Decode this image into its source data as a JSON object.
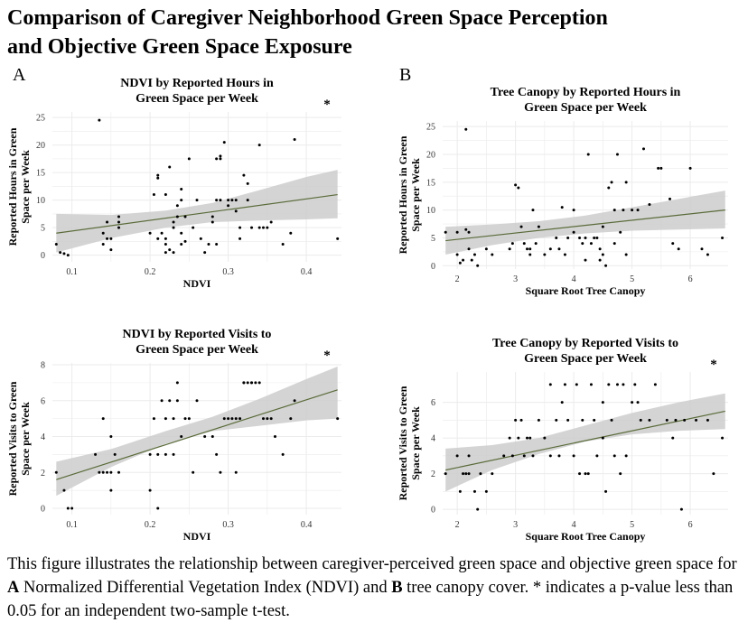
{
  "figure": {
    "title_line1": "Comparison of Caregiver Neighborhood Green Space Perception",
    "title_line2": "and Objective Green Space Exposure",
    "panel_a": "A",
    "panel_b": "B",
    "caption": {
      "part1": "This figure illustrates the relationship between caregiver-perceived green space and objective green space for ",
      "bold_a": "A",
      "part2": " Normalized Differential Vegetation Index (NDVI) and ",
      "bold_b": "B",
      "part3": " tree canopy cover. * indicates a p-value less than 0.05 for an independent two-sample t-test."
    },
    "colors": {
      "grid": "#ebebeb",
      "band": "#cccccc",
      "fit": "#5a6b3a",
      "point": "#000000"
    }
  },
  "chart_data": [
    {
      "type": "scatter",
      "title_line1": "NDVI by Reported Hours in",
      "title_line2": "Green Space per Week",
      "xlabel": "NDVI",
      "ylabel_line1": "Reported Hours in Green",
      "ylabel_line2": "Space per Week",
      "significance": "*",
      "xlim": [
        0.075,
        0.445
      ],
      "ylim": [
        -1.2,
        26
      ],
      "xticks": [
        0.1,
        0.2,
        0.3,
        0.4
      ],
      "xtick_labels": [
        "0.1",
        "0.2",
        "0.3",
        "0.4"
      ],
      "yticks": [
        0,
        5,
        10,
        15,
        20,
        25
      ],
      "ytick_labels": [
        "0",
        "5",
        "10",
        "15",
        "20",
        "25"
      ],
      "fit": {
        "x0": 0.08,
        "y0": 4,
        "x1": 0.44,
        "y1": 11
      },
      "band": {
        "x": [
          0.08,
          0.15,
          0.22,
          0.28,
          0.34,
          0.4,
          0.44
        ],
        "lower": [
          0.5,
          3.1,
          5.0,
          6.0,
          6.3,
          6.5,
          6.7
        ],
        "upper": [
          7.5,
          7.3,
          8.1,
          9.5,
          11.8,
          14.2,
          15.5
        ]
      },
      "points": [
        [
          0.08,
          2
        ],
        [
          0.085,
          0.5
        ],
        [
          0.09,
          0.3
        ],
        [
          0.095,
          0
        ],
        [
          0.135,
          24.5
        ],
        [
          0.14,
          2
        ],
        [
          0.14,
          4
        ],
        [
          0.145,
          6
        ],
        [
          0.145,
          3
        ],
        [
          0.15,
          1
        ],
        [
          0.15,
          3
        ],
        [
          0.16,
          5
        ],
        [
          0.16,
          6
        ],
        [
          0.16,
          7
        ],
        [
          0.2,
          4
        ],
        [
          0.205,
          11
        ],
        [
          0.21,
          3
        ],
        [
          0.21,
          14.5
        ],
        [
          0.21,
          14
        ],
        [
          0.215,
          4
        ],
        [
          0.22,
          11
        ],
        [
          0.22,
          3
        ],
        [
          0.22,
          2
        ],
        [
          0.22,
          0.5
        ],
        [
          0.225,
          1
        ],
        [
          0.225,
          16
        ],
        [
          0.23,
          5
        ],
        [
          0.23,
          6
        ],
        [
          0.23,
          0.5
        ],
        [
          0.235,
          7
        ],
        [
          0.235,
          9
        ],
        [
          0.24,
          4
        ],
        [
          0.24,
          10
        ],
        [
          0.24,
          12
        ],
        [
          0.24,
          2
        ],
        [
          0.245,
          2.5
        ],
        [
          0.245,
          7
        ],
        [
          0.25,
          17.5
        ],
        [
          0.255,
          5
        ],
        [
          0.26,
          10
        ],
        [
          0.265,
          3
        ],
        [
          0.27,
          0.5
        ],
        [
          0.275,
          2
        ],
        [
          0.28,
          6
        ],
        [
          0.28,
          7
        ],
        [
          0.285,
          10
        ],
        [
          0.285,
          2
        ],
        [
          0.285,
          17.5
        ],
        [
          0.29,
          10
        ],
        [
          0.29,
          18
        ],
        [
          0.29,
          17.5
        ],
        [
          0.295,
          20.5
        ],
        [
          0.3,
          10
        ],
        [
          0.3,
          9
        ],
        [
          0.305,
          10
        ],
        [
          0.31,
          10
        ],
        [
          0.31,
          8
        ],
        [
          0.315,
          3
        ],
        [
          0.315,
          5
        ],
        [
          0.32,
          14.5
        ],
        [
          0.325,
          10
        ],
        [
          0.325,
          13
        ],
        [
          0.33,
          5
        ],
        [
          0.34,
          20
        ],
        [
          0.34,
          5
        ],
        [
          0.345,
          5
        ],
        [
          0.35,
          5
        ],
        [
          0.355,
          6
        ],
        [
          0.37,
          2
        ],
        [
          0.38,
          4
        ],
        [
          0.385,
          21
        ],
        [
          0.44,
          3
        ]
      ]
    },
    {
      "type": "scatter",
      "title_line1": "Tree Canopy by Reported Hours in",
      "title_line2": "Green Space per Week",
      "xlabel": "Square Root Tree Canopy",
      "ylabel_line1": "Reported Hours in Green",
      "ylabel_line2": "Space per Week",
      "significance": "",
      "xlim": [
        1.75,
        6.65
      ],
      "ylim": [
        -0.6,
        26
      ],
      "xticks": [
        2,
        3,
        4,
        5,
        6
      ],
      "xtick_labels": [
        "2",
        "3",
        "4",
        "5",
        "6"
      ],
      "yticks": [
        0,
        5,
        10,
        15,
        20,
        25
      ],
      "ytick_labels": [
        "0",
        "5",
        "10",
        "15",
        "20",
        "25"
      ],
      "fit": {
        "x0": 1.8,
        "y0": 4.5,
        "x1": 6.6,
        "y1": 10
      },
      "band": {
        "x": [
          1.8,
          2.6,
          3.4,
          4.2,
          5.0,
          5.8,
          6.6
        ],
        "lower": [
          2.0,
          3.7,
          5.0,
          5.8,
          6.3,
          6.5,
          6.7
        ],
        "upper": [
          7.0,
          7.4,
          8.0,
          9.0,
          10.5,
          12.0,
          13.5
        ]
      },
      "points": [
        [
          1.8,
          6
        ],
        [
          2.0,
          2
        ],
        [
          2.0,
          6
        ],
        [
          2.05,
          0.5
        ],
        [
          2.1,
          1
        ],
        [
          2.15,
          6.5
        ],
        [
          2.15,
          24.5
        ],
        [
          2.2,
          6
        ],
        [
          2.2,
          3
        ],
        [
          2.25,
          1
        ],
        [
          2.3,
          2
        ],
        [
          2.35,
          0
        ],
        [
          2.5,
          3
        ],
        [
          2.6,
          2
        ],
        [
          2.9,
          3
        ],
        [
          2.95,
          4
        ],
        [
          3.0,
          14.5
        ],
        [
          3.05,
          14
        ],
        [
          3.1,
          7
        ],
        [
          3.15,
          4
        ],
        [
          3.2,
          3
        ],
        [
          3.25,
          3
        ],
        [
          3.25,
          2
        ],
        [
          3.3,
          10
        ],
        [
          3.35,
          4
        ],
        [
          3.4,
          7
        ],
        [
          3.5,
          2
        ],
        [
          3.6,
          3
        ],
        [
          3.7,
          5
        ],
        [
          3.75,
          3
        ],
        [
          3.8,
          10.5
        ],
        [
          3.85,
          2
        ],
        [
          3.9,
          5
        ],
        [
          4.0,
          6
        ],
        [
          4.0,
          10
        ],
        [
          4.1,
          5
        ],
        [
          4.15,
          4
        ],
        [
          4.2,
          1
        ],
        [
          4.2,
          5
        ],
        [
          4.25,
          20
        ],
        [
          4.3,
          4
        ],
        [
          4.35,
          5
        ],
        [
          4.4,
          5
        ],
        [
          4.45,
          1
        ],
        [
          4.45,
          3
        ],
        [
          4.5,
          2
        ],
        [
          4.5,
          7
        ],
        [
          4.55,
          0
        ],
        [
          4.6,
          14
        ],
        [
          4.65,
          15
        ],
        [
          4.7,
          10
        ],
        [
          4.7,
          4
        ],
        [
          4.75,
          20
        ],
        [
          4.8,
          6
        ],
        [
          4.85,
          10
        ],
        [
          4.9,
          15
        ],
        [
          4.9,
          2
        ],
        [
          5.0,
          10
        ],
        [
          5.1,
          10
        ],
        [
          5.2,
          21
        ],
        [
          5.3,
          11
        ],
        [
          5.45,
          17.5
        ],
        [
          5.5,
          17.5
        ],
        [
          5.65,
          12
        ],
        [
          5.7,
          4
        ],
        [
          5.8,
          3
        ],
        [
          6.0,
          17.5
        ],
        [
          6.2,
          3
        ],
        [
          6.3,
          2
        ],
        [
          6.55,
          5
        ]
      ]
    },
    {
      "type": "scatter",
      "title_line1": "NDVI by Reported Visits to",
      "title_line2": "Green Space per Week",
      "xlabel": "NDVI",
      "ylabel_line1": "Reported Visits to Green",
      "ylabel_line2": "Space per Week",
      "significance": "*",
      "xlim": [
        0.075,
        0.445
      ],
      "ylim": [
        -0.35,
        8.1
      ],
      "xticks": [
        0.1,
        0.2,
        0.3,
        0.4
      ],
      "xtick_labels": [
        "0.1",
        "0.2",
        "0.3",
        "0.4"
      ],
      "yticks": [
        0,
        2,
        4,
        6,
        8
      ],
      "ytick_labels": [
        "0",
        "2",
        "4",
        "6",
        "8"
      ],
      "fit": {
        "x0": 0.08,
        "y0": 1.6,
        "x1": 0.44,
        "y1": 6.6
      },
      "band": {
        "x": [
          0.08,
          0.15,
          0.22,
          0.28,
          0.34,
          0.4,
          0.44
        ],
        "lower": [
          0.7,
          2.3,
          3.6,
          4.3,
          4.6,
          4.9,
          5.0
        ],
        "upper": [
          2.6,
          3.3,
          4.3,
          5.1,
          6.1,
          7.2,
          7.9
        ]
      },
      "points": [
        [
          0.08,
          2
        ],
        [
          0.09,
          1
        ],
        [
          0.095,
          0
        ],
        [
          0.1,
          0
        ],
        [
          0.13,
          3
        ],
        [
          0.14,
          5
        ],
        [
          0.135,
          2
        ],
        [
          0.14,
          2
        ],
        [
          0.145,
          2
        ],
        [
          0.15,
          4
        ],
        [
          0.15,
          2
        ],
        [
          0.15,
          1
        ],
        [
          0.155,
          3
        ],
        [
          0.16,
          2
        ],
        [
          0.2,
          3
        ],
        [
          0.2,
          1
        ],
        [
          0.205,
          5
        ],
        [
          0.21,
          3
        ],
        [
          0.21,
          0
        ],
        [
          0.215,
          6
        ],
        [
          0.22,
          5
        ],
        [
          0.22,
          3
        ],
        [
          0.225,
          6
        ],
        [
          0.23,
          3
        ],
        [
          0.23,
          5
        ],
        [
          0.235,
          7
        ],
        [
          0.235,
          6
        ],
        [
          0.24,
          4
        ],
        [
          0.245,
          5
        ],
        [
          0.25,
          5
        ],
        [
          0.255,
          2
        ],
        [
          0.26,
          6
        ],
        [
          0.27,
          4
        ],
        [
          0.28,
          4
        ],
        [
          0.285,
          3
        ],
        [
          0.29,
          2
        ],
        [
          0.295,
          5
        ],
        [
          0.3,
          5
        ],
        [
          0.305,
          5
        ],
        [
          0.31,
          5
        ],
        [
          0.31,
          2
        ],
        [
          0.315,
          5
        ],
        [
          0.32,
          7
        ],
        [
          0.32,
          7
        ],
        [
          0.325,
          7
        ],
        [
          0.33,
          7
        ],
        [
          0.33,
          7
        ],
        [
          0.335,
          7
        ],
        [
          0.34,
          7
        ],
        [
          0.345,
          5
        ],
        [
          0.35,
          5
        ],
        [
          0.355,
          5
        ],
        [
          0.36,
          4
        ],
        [
          0.37,
          3
        ],
        [
          0.38,
          5
        ],
        [
          0.385,
          6
        ],
        [
          0.44,
          5
        ]
      ]
    },
    {
      "type": "scatter",
      "title_line1": "Tree Canopy by Reported Visits to",
      "title_line2": "Green Space per Week",
      "xlabel": "Square Root Tree Canopy",
      "ylabel_line1": "Reported Visits to Green",
      "ylabel_line2": "Space per Week",
      "significance": "*",
      "xlim": [
        1.75,
        6.65
      ],
      "ylim": [
        -0.3,
        7.7
      ],
      "xticks": [
        2,
        3,
        4,
        5,
        6
      ],
      "xtick_labels": [
        "2",
        "3",
        "4",
        "5",
        "6"
      ],
      "yticks": [
        0,
        2,
        4,
        6
      ],
      "ytick_labels": [
        "0",
        "2",
        "4",
        "6"
      ],
      "fit": {
        "x0": 1.8,
        "y0": 2.2,
        "x1": 6.6,
        "y1": 5.5
      },
      "band": {
        "x": [
          1.8,
          2.6,
          3.4,
          4.2,
          5.0,
          5.8,
          6.6
        ],
        "lower": [
          1.0,
          2.2,
          3.1,
          3.8,
          4.2,
          4.4,
          4.5
        ],
        "upper": [
          3.4,
          3.6,
          4.0,
          4.7,
          5.4,
          6.0,
          6.5
        ]
      },
      "points": [
        [
          1.8,
          2
        ],
        [
          2.0,
          3
        ],
        [
          2.05,
          1
        ],
        [
          2.1,
          2
        ],
        [
          2.15,
          2
        ],
        [
          2.2,
          2
        ],
        [
          2.2,
          3
        ],
        [
          2.3,
          1
        ],
        [
          2.35,
          0
        ],
        [
          2.4,
          2
        ],
        [
          2.5,
          1
        ],
        [
          2.6,
          2
        ],
        [
          2.8,
          3
        ],
        [
          2.9,
          4
        ],
        [
          2.95,
          3
        ],
        [
          3.0,
          5
        ],
        [
          3.05,
          4
        ],
        [
          3.1,
          5
        ],
        [
          3.15,
          3
        ],
        [
          3.2,
          4
        ],
        [
          3.25,
          4
        ],
        [
          3.3,
          3
        ],
        [
          3.4,
          5
        ],
        [
          3.5,
          4
        ],
        [
          3.6,
          3
        ],
        [
          3.6,
          7
        ],
        [
          3.7,
          5
        ],
        [
          3.75,
          3
        ],
        [
          3.8,
          6
        ],
        [
          3.85,
          7
        ],
        [
          3.9,
          5
        ],
        [
          4.0,
          3
        ],
        [
          4.05,
          7
        ],
        [
          4.1,
          2
        ],
        [
          4.15,
          5
        ],
        [
          4.2,
          2
        ],
        [
          4.25,
          2
        ],
        [
          4.3,
          7
        ],
        [
          4.35,
          5
        ],
        [
          4.4,
          3
        ],
        [
          4.5,
          6
        ],
        [
          4.5,
          4
        ],
        [
          4.55,
          1
        ],
        [
          4.6,
          7
        ],
        [
          4.65,
          5
        ],
        [
          4.7,
          3
        ],
        [
          4.75,
          7
        ],
        [
          4.8,
          2
        ],
        [
          4.85,
          7
        ],
        [
          4.9,
          3
        ],
        [
          5.0,
          6
        ],
        [
          5.05,
          7
        ],
        [
          5.1,
          6
        ],
        [
          5.15,
          5
        ],
        [
          5.3,
          5
        ],
        [
          5.4,
          7
        ],
        [
          5.6,
          5
        ],
        [
          5.7,
          4
        ],
        [
          5.75,
          5
        ],
        [
          5.85,
          0
        ],
        [
          5.9,
          5
        ],
        [
          6.1,
          5
        ],
        [
          6.3,
          5
        ],
        [
          6.4,
          2
        ],
        [
          6.55,
          4
        ]
      ]
    }
  ]
}
